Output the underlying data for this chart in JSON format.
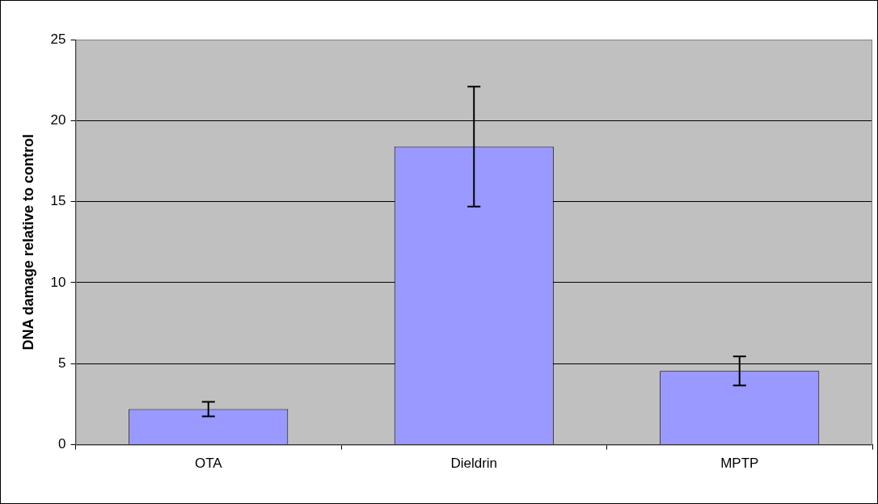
{
  "chart_data": {
    "type": "bar",
    "ylabel": "DNA damage relative to control",
    "categories": [
      "OTA",
      "Dieldrin",
      "MPTP"
    ],
    "values": [
      2.2,
      18.4,
      4.55
    ],
    "errors": [
      0.45,
      3.7,
      0.9
    ],
    "color": "#9999ff",
    "ylim": [
      0,
      25
    ],
    "yticks": [
      0,
      5,
      10,
      15,
      20,
      25
    ],
    "grid": "y",
    "legend": false
  }
}
